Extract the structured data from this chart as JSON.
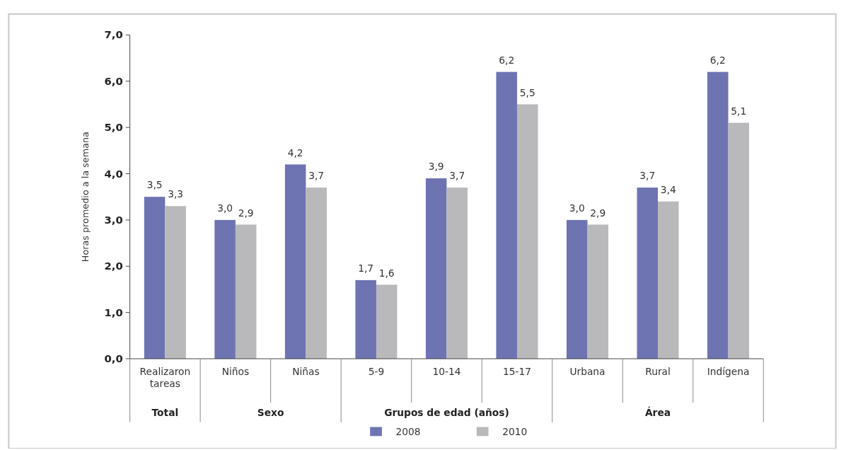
{
  "chart_data": {
    "type": "bar",
    "ylabel": "Horas promedio a la semana",
    "categories": [
      "Realizaron tareas",
      "Niños",
      "Niñas",
      "5-9",
      "10-14",
      "15-17",
      "Urbana",
      "Rural",
      "Indígena"
    ],
    "series": [
      {
        "name": "2008",
        "color": "#6e74b2",
        "values": [
          3.5,
          3.0,
          4.2,
          1.7,
          3.9,
          6.2,
          3.0,
          3.7,
          6.2
        ],
        "value_labels": [
          "3,5",
          "3,0",
          "4,2",
          "1,7",
          "3,9",
          "6,2",
          "3,0",
          "3,7",
          "6,2"
        ]
      },
      {
        "name": "2010",
        "color": "#b9b9bb",
        "values": [
          3.3,
          2.9,
          3.7,
          1.6,
          3.7,
          5.5,
          2.9,
          3.4,
          5.1
        ],
        "value_labels": [
          "3,3",
          "2,9",
          "3,7",
          "1,6",
          "3,7",
          "5,5",
          "2,9",
          "3,4",
          "5,1"
        ]
      }
    ],
    "ylim": [
      0,
      7
    ],
    "yticks": [
      {
        "value": 0,
        "label": "0,0"
      },
      {
        "value": 1,
        "label": "1,0"
      },
      {
        "value": 2,
        "label": "2,0"
      },
      {
        "value": 3,
        "label": "3,0"
      },
      {
        "value": 4,
        "label": "4,0"
      },
      {
        "value": 5,
        "label": "5,0"
      },
      {
        "value": 6,
        "label": "6,0"
      },
      {
        "value": 7,
        "label": "7,0"
      }
    ],
    "annotations": [
      "Total",
      "Sexo",
      "Grupos de edad (años)",
      "Área"
    ],
    "legend": "bottom",
    "grid": false
  }
}
